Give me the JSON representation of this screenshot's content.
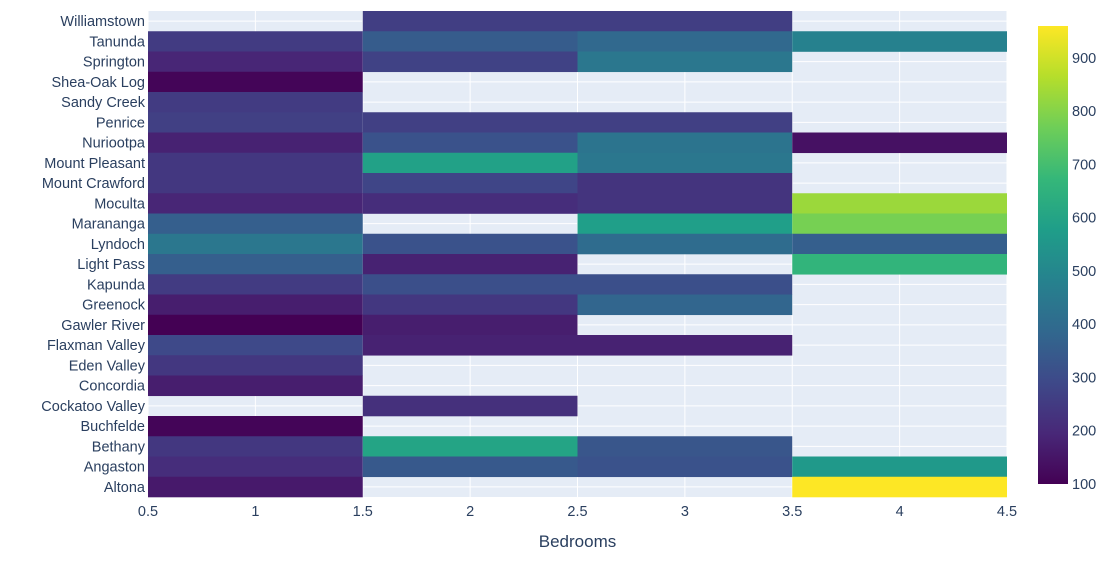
{
  "chart_data": {
    "type": "heatmap",
    "title": "",
    "xlabel": "Bedrooms",
    "ylabel": "",
    "x_bins": [
      [
        0.5,
        1.5
      ],
      [
        1.5,
        2.5
      ],
      [
        2.5,
        3.5
      ],
      [
        3.5,
        4.5
      ]
    ],
    "xlim": [
      0.5,
      4.5
    ],
    "x_ticks": [
      "0.5",
      "1",
      "1.5",
      "2",
      "2.5",
      "3",
      "3.5",
      "4",
      "4.5"
    ],
    "x_tick_values": [
      0.5,
      1,
      1.5,
      2,
      2.5,
      3,
      3.5,
      4,
      4.5
    ],
    "grid": true,
    "y_categories": [
      "Williamstown",
      "Tanunda",
      "Springton",
      "Shea-Oak Log",
      "Sandy Creek",
      "Penrice",
      "Nuriootpa",
      "Mount Pleasant",
      "Mount Crawford",
      "Moculta",
      "Marananga",
      "Lyndoch",
      "Light Pass",
      "Kapunda",
      "Greenock",
      "Gawler River",
      "Flaxman Valley",
      "Eden Valley",
      "Concordia",
      "Cockatoo Valley",
      "Buchfelde",
      "Bethany",
      "Angaston",
      "Altona"
    ],
    "z": [
      [
        null,
        260,
        260,
        null
      ],
      [
        250,
        350,
        390,
        480
      ],
      [
        190,
        270,
        440,
        null
      ],
      [
        110,
        null,
        null,
        null
      ],
      [
        250,
        null,
        null,
        null
      ],
      [
        265,
        265,
        265,
        null
      ],
      [
        180,
        320,
        430,
        140
      ],
      [
        240,
        590,
        440,
        null
      ],
      [
        240,
        280,
        230,
        null
      ],
      [
        190,
        210,
        230,
        830
      ],
      [
        360,
        null,
        580,
        780
      ],
      [
        440,
        320,
        400,
        360
      ],
      [
        360,
        180,
        null,
        660
      ],
      [
        250,
        310,
        310,
        null
      ],
      [
        170,
        240,
        380,
        null
      ],
      [
        100,
        170,
        null,
        null
      ],
      [
        290,
        180,
        180,
        null
      ],
      [
        240,
        null,
        null,
        null
      ],
      [
        170,
        null,
        null,
        null
      ],
      [
        null,
        220,
        null,
        null
      ],
      [
        110,
        null,
        null,
        null
      ],
      [
        240,
        600,
        330,
        null
      ],
      [
        210,
        340,
        320,
        560
      ],
      [
        160,
        null,
        null,
        960
      ]
    ],
    "colorscale": "Viridis",
    "zlim": [
      100,
      960
    ],
    "colorbar_ticks": [
      100,
      200,
      300,
      400,
      500,
      600,
      700,
      800,
      900
    ],
    "colorbar_placement": "right",
    "plot_background": "#e5ecf6",
    "colorscale_stops": [
      "#440154",
      "#482878",
      "#3e4989",
      "#31688e",
      "#26828e",
      "#1f9e89",
      "#35b779",
      "#6ece58",
      "#b5de2b",
      "#fde725"
    ]
  }
}
